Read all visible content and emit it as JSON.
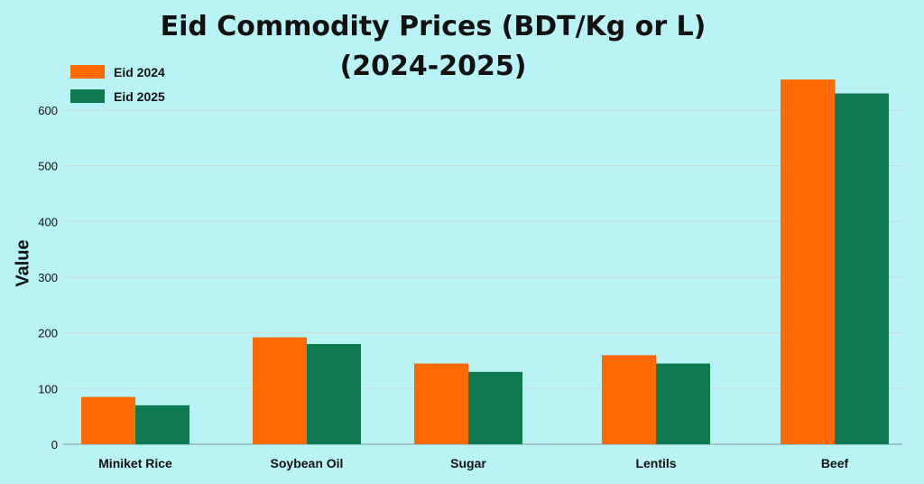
{
  "chart_data": {
    "type": "bar",
    "title_line1": "Eid Commodity Prices (BDT/Kg or L)",
    "title_line2": "(2024-2025)",
    "xlabel": "",
    "ylabel": "Value",
    "categories": [
      "Miniket Rice",
      "Soybean Oil",
      "Sugar",
      "Lentils",
      "Beef"
    ],
    "series": [
      {
        "name": "Eid 2024",
        "color": "#ff6a00",
        "values": [
          85,
          192,
          145,
          160,
          655
        ]
      },
      {
        "name": "Eid 2025",
        "color": "#0e7a52",
        "values": [
          70,
          180,
          130,
          145,
          630
        ]
      }
    ],
    "ylim": [
      0,
      700
    ],
    "yticks": [
      0,
      100,
      200,
      300,
      400,
      500,
      600
    ],
    "grid": true,
    "legend_position": "top-left"
  }
}
